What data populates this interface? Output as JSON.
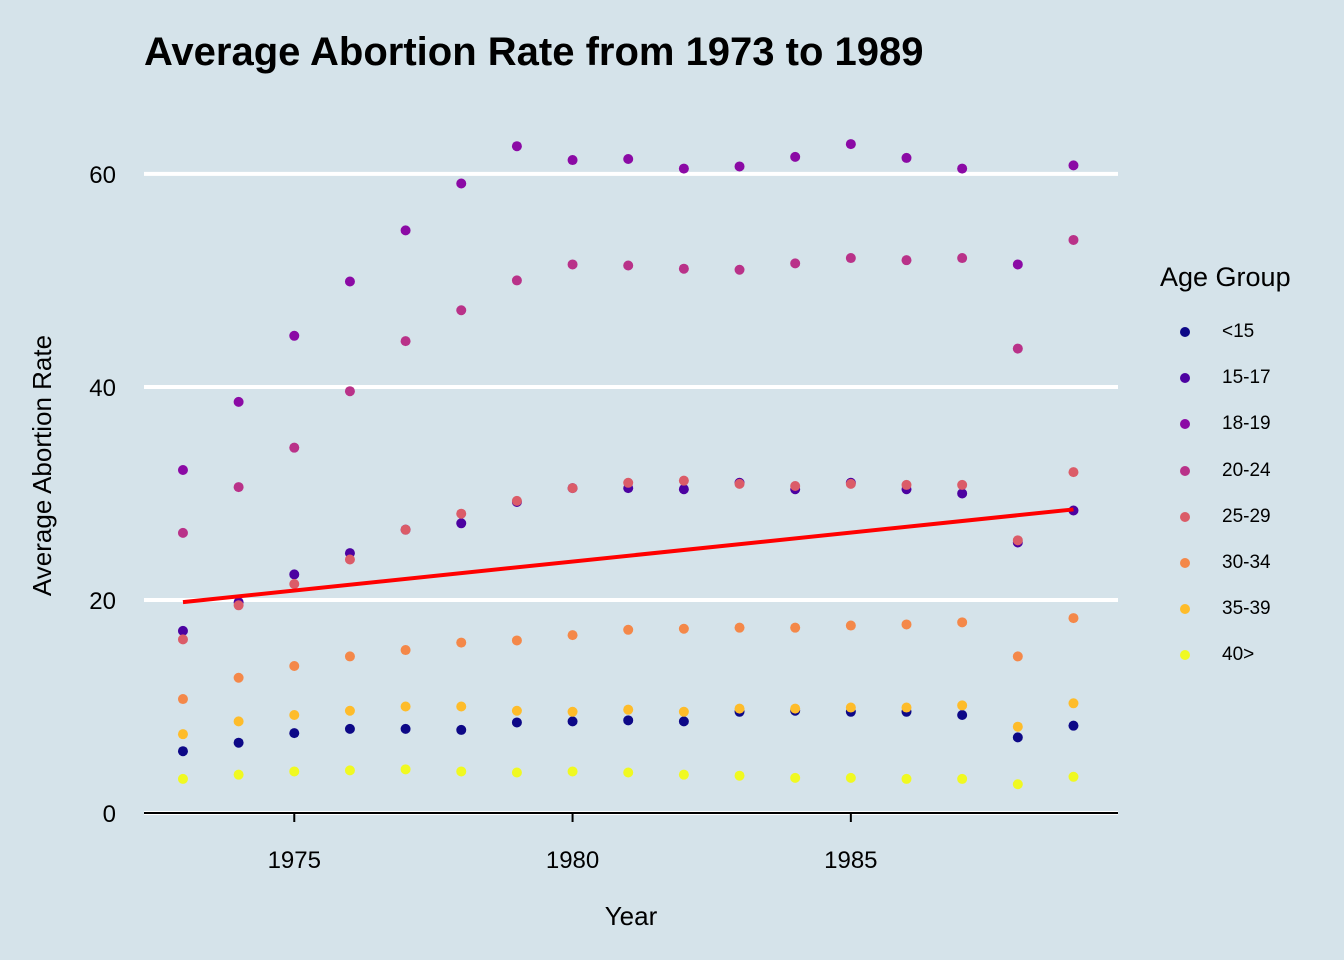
{
  "chart_data": {
    "type": "scatter",
    "title": "Average Abortion Rate from 1973 to 1989",
    "xlabel": "Year",
    "ylabel": "Average Abortion Rate",
    "xlim": [
      1972.3,
      1989.8
    ],
    "ylim": [
      0,
      66
    ],
    "x_ticks": [
      1975,
      1980,
      1985
    ],
    "y_ticks": [
      0,
      20,
      40,
      60
    ],
    "grid": "horizontal major lines only",
    "legend": {
      "title": "Age Group",
      "position": "right"
    },
    "x": [
      1973,
      1974,
      1975,
      1976,
      1977,
      1978,
      1979,
      1980,
      1981,
      1982,
      1983,
      1984,
      1985,
      1986,
      1987,
      1988,
      1989
    ],
    "series": [
      {
        "name": "<15",
        "color": "#0d0887",
        "values": [
          5.8,
          6.6,
          7.5,
          7.9,
          7.9,
          7.8,
          8.5,
          8.6,
          8.7,
          8.6,
          9.5,
          9.6,
          9.5,
          9.5,
          9.2,
          7.1,
          8.2
        ]
      },
      {
        "name": "15-17",
        "color": "#4c02a1",
        "values": [
          17.1,
          19.8,
          22.4,
          24.4,
          26.6,
          27.2,
          29.2,
          30.5,
          30.5,
          30.4,
          31.0,
          30.4,
          31.0,
          30.4,
          30.0,
          25.4,
          28.4
        ]
      },
      {
        "name": "18-19",
        "color": "#8b0aa5",
        "values": [
          32.2,
          38.6,
          44.8,
          49.9,
          54.7,
          59.1,
          62.6,
          61.3,
          61.4,
          60.5,
          60.7,
          61.6,
          62.8,
          61.5,
          60.5,
          51.5,
          60.8
        ]
      },
      {
        "name": "20-24",
        "color": "#b93289",
        "values": [
          26.3,
          30.6,
          34.3,
          39.6,
          44.3,
          47.2,
          50.0,
          51.5,
          51.4,
          51.1,
          51.0,
          51.6,
          52.1,
          51.9,
          52.1,
          43.6,
          53.8
        ]
      },
      {
        "name": "25-29",
        "color": "#db5c68",
        "values": [
          16.3,
          19.5,
          21.5,
          23.8,
          26.6,
          28.1,
          29.3,
          30.5,
          31.0,
          31.2,
          30.9,
          30.7,
          30.9,
          30.8,
          30.8,
          25.6,
          32.0
        ]
      },
      {
        "name": "30-34",
        "color": "#f48849",
        "values": [
          10.7,
          12.7,
          13.8,
          14.7,
          15.3,
          16.0,
          16.2,
          16.7,
          17.2,
          17.3,
          17.4,
          17.4,
          17.6,
          17.7,
          17.9,
          14.7,
          18.3
        ]
      },
      {
        "name": "35-39",
        "color": "#febc2a",
        "values": [
          7.4,
          8.6,
          9.2,
          9.6,
          10.0,
          10.0,
          9.6,
          9.5,
          9.7,
          9.5,
          9.8,
          9.8,
          9.9,
          9.9,
          10.1,
          8.1,
          10.3
        ]
      },
      {
        "name": "40>",
        "color": "#f0f921",
        "values": [
          3.2,
          3.6,
          3.9,
          4.0,
          4.1,
          3.9,
          3.8,
          3.9,
          3.8,
          3.6,
          3.5,
          3.3,
          3.3,
          3.2,
          3.2,
          2.7,
          3.4
        ]
      }
    ],
    "trend_line": {
      "color": "#ff0000",
      "x": [
        1973,
        1989
      ],
      "y": [
        19.8,
        28.5
      ]
    }
  }
}
